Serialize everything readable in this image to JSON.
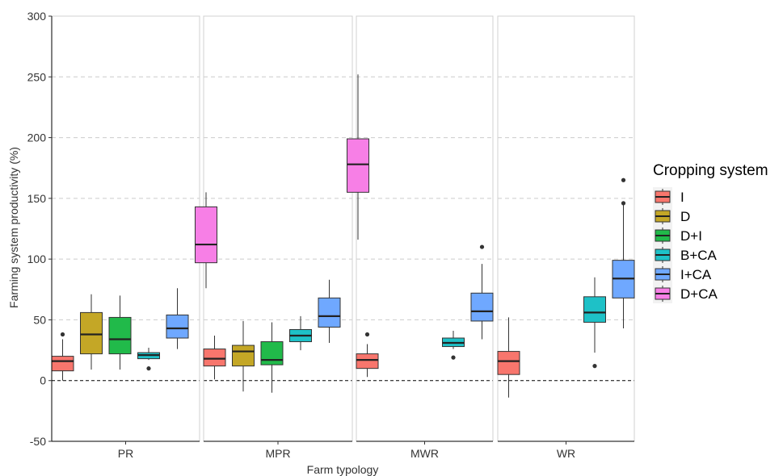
{
  "chart_data": {
    "type": "box",
    "ylabel": "Farming system productivity (%)",
    "xlabel": "Farm typology",
    "ylim": [
      -50,
      300
    ],
    "yticks": [
      -50,
      0,
      50,
      100,
      150,
      200,
      250,
      300
    ],
    "grid": "horizontal-dashed",
    "reference_line": 0,
    "legend": {
      "title": "Cropping system",
      "placement": "right",
      "entries": [
        {
          "name": "I",
          "color": "#F8766D"
        },
        {
          "name": "D",
          "color": "#C4A726"
        },
        {
          "name": "D+I",
          "color": "#21BA4A"
        },
        {
          "name": "B+CA",
          "color": "#1EC1C7"
        },
        {
          "name": "I+CA",
          "color": "#6FA8FF"
        },
        {
          "name": "D+CA",
          "color": "#F77FE6"
        }
      ]
    },
    "facets": [
      {
        "label": "PR",
        "boxes": [
          {
            "system": "I",
            "min": 0,
            "q1": 8,
            "median": 16,
            "q3": 20,
            "max": 34,
            "outliers": [
              38
            ]
          },
          {
            "system": "D",
            "min": 9,
            "q1": 22,
            "median": 38,
            "q3": 56,
            "max": 71,
            "outliers": []
          },
          {
            "system": "D+I",
            "min": 9,
            "q1": 22,
            "median": 34,
            "q3": 52,
            "max": 70,
            "outliers": []
          },
          {
            "system": "B+CA",
            "min": 17,
            "q1": 18,
            "median": 21,
            "q3": 23,
            "max": 27,
            "outliers": [
              10
            ]
          },
          {
            "system": "I+CA",
            "min": 26,
            "q1": 35,
            "median": 43,
            "q3": 54,
            "max": 76,
            "outliers": []
          },
          {
            "system": "D+CA",
            "min": 76,
            "q1": 97,
            "median": 112,
            "q3": 143,
            "max": 155,
            "outliers": []
          }
        ]
      },
      {
        "label": "MPR",
        "boxes": [
          {
            "system": "I",
            "min": 1,
            "q1": 12,
            "median": 18,
            "q3": 26,
            "max": 37,
            "outliers": []
          },
          {
            "system": "D",
            "min": -9,
            "q1": 12,
            "median": 24,
            "q3": 29,
            "max": 49,
            "outliers": []
          },
          {
            "system": "D+I",
            "min": -10,
            "q1": 13,
            "median": 17,
            "q3": 32,
            "max": 48,
            "outliers": []
          },
          {
            "system": "B+CA",
            "min": 25,
            "q1": 32,
            "median": 37,
            "q3": 42,
            "max": 53,
            "outliers": []
          },
          {
            "system": "I+CA",
            "min": 31,
            "q1": 44,
            "median": 53,
            "q3": 68,
            "max": 83,
            "outliers": []
          },
          {
            "system": "D+CA",
            "min": 116,
            "q1": 155,
            "median": 178,
            "q3": 199,
            "max": 252,
            "outliers": []
          }
        ]
      },
      {
        "label": "MWR",
        "boxes": [
          {
            "system": "I",
            "min": 3,
            "q1": 10,
            "median": 17,
            "q3": 22,
            "max": 30,
            "outliers": [
              38
            ]
          },
          {
            "system": "B+CA",
            "min": 26,
            "q1": 28,
            "median": 31,
            "q3": 35,
            "max": 41,
            "outliers": [
              19
            ]
          },
          {
            "system": "I+CA",
            "min": 34,
            "q1": 49,
            "median": 57,
            "q3": 72,
            "max": 96,
            "outliers": [
              110
            ]
          }
        ]
      },
      {
        "label": "WR",
        "boxes": [
          {
            "system": "I",
            "min": -14,
            "q1": 5,
            "median": 16,
            "q3": 24,
            "max": 52,
            "outliers": []
          },
          {
            "system": "B+CA",
            "min": 23,
            "q1": 48,
            "median": 56,
            "q3": 69,
            "max": 85,
            "outliers": [
              12
            ]
          },
          {
            "system": "I+CA",
            "min": 43,
            "q1": 68,
            "median": 84,
            "q3": 99,
            "max": 146,
            "outliers": [
              146,
              165
            ]
          }
        ]
      }
    ]
  }
}
